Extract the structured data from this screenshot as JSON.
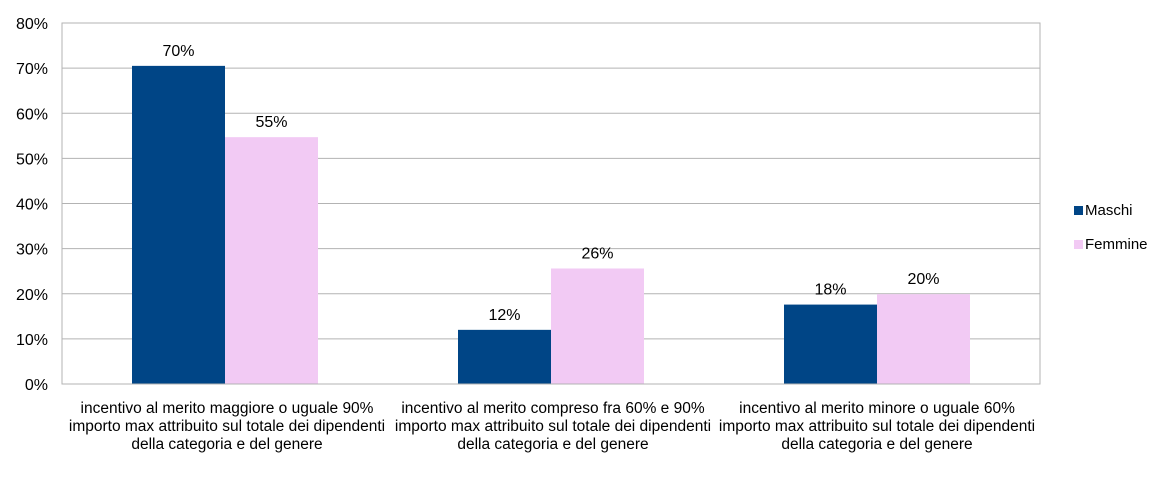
{
  "chart_data": {
    "type": "bar",
    "categories": [
      "incentivo al merito maggiore o uguale 90% importo max attribuito sul totale dei dipendenti della categoria e del genere",
      "incentivo al merito compreso fra 60% e 90% importo max attribuito sul totale dei dipendenti della categoria e del genere",
      "incentivo al merito minore o uguale 60% importo max attribuito sul totale dei dipendenti della categoria e del genere"
    ],
    "series": [
      {
        "name": "Maschi",
        "values": [
          70.5,
          12,
          17.6
        ],
        "labels": [
          "70%",
          "12%",
          "18%"
        ],
        "color": "#004586"
      },
      {
        "name": "Femmine",
        "values": [
          54.7,
          25.6,
          19.9
        ],
        "labels": [
          "55%",
          "26%",
          "20%"
        ],
        "color": "#f2caf4"
      }
    ],
    "ylim": [
      0,
      80
    ],
    "yticks": [
      "0%",
      "10%",
      "20%",
      "30%",
      "40%",
      "50%",
      "60%",
      "70%",
      "80%"
    ],
    "grid": true,
    "legend_position": "right",
    "title": "",
    "xlabel": "",
    "ylabel": ""
  }
}
